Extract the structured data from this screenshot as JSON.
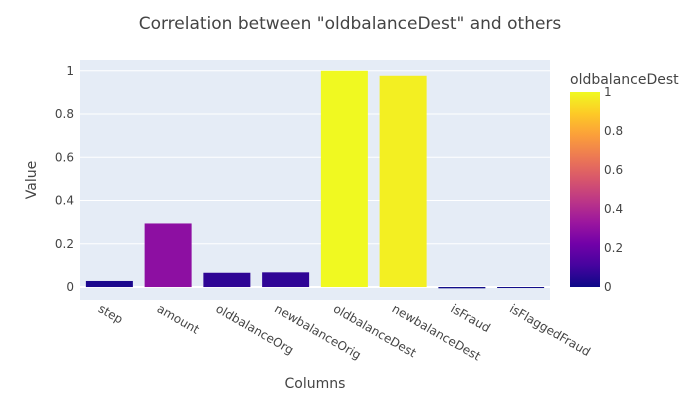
{
  "chart_data": {
    "type": "bar",
    "title": "Correlation between \"oldbalanceDest\" and others",
    "xlabel": "Columns",
    "ylabel": "Value",
    "categories": [
      "step",
      "amount",
      "oldbalanceOrg",
      "newbalanceOrig",
      "oldbalanceDest",
      "newbalanceDest",
      "isFraud",
      "isFlaggedFraud"
    ],
    "values": [
      0.028,
      0.294,
      0.066,
      0.068,
      1.0,
      0.977,
      -0.006,
      -0.001
    ],
    "ylim": [
      -0.06,
      1.05
    ],
    "y_ticks": [
      0,
      0.2,
      0.4,
      0.6,
      0.8,
      1
    ],
    "y_tick_labels": [
      "0",
      "0.2",
      "0.4",
      "0.6",
      "0.8",
      "1"
    ],
    "grid": true,
    "colorbar": {
      "title": "oldbalanceDest",
      "range": [
        0,
        1
      ],
      "ticks": [
        0,
        0.2,
        0.4,
        0.6,
        0.8,
        1
      ],
      "tick_labels": [
        "0",
        "0.2",
        "0.4",
        "0.6",
        "0.8",
        "1"
      ],
      "colorscale": [
        "#0d0887",
        "#46039f",
        "#7201a8",
        "#9c179e",
        "#bd3786",
        "#d8576b",
        "#ed7953",
        "#fb9f3a",
        "#fdca26",
        "#f0f921"
      ]
    },
    "colors": {
      "plot_background": "#e5ecf6",
      "grid": "#ffffff",
      "text": "#444444"
    }
  }
}
